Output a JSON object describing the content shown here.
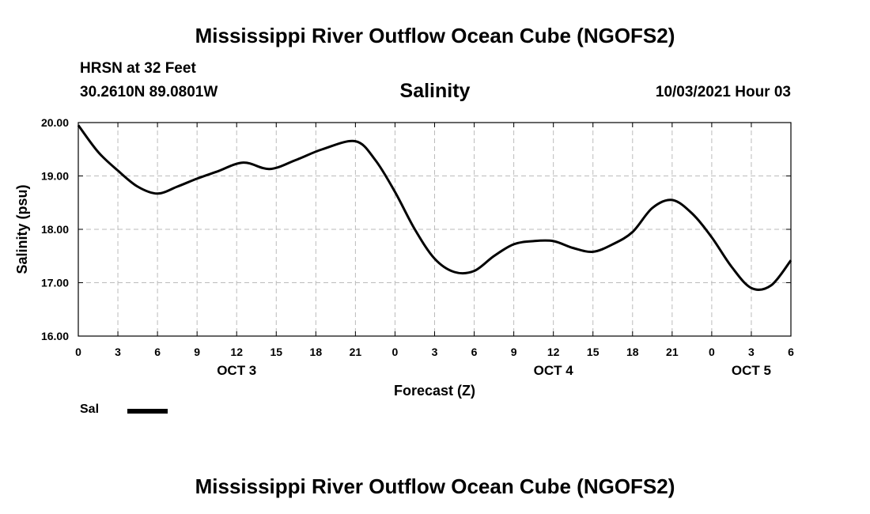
{
  "header": {
    "title": "Mississippi River Outflow Ocean Cube (NGOFS2)",
    "station": "HRSN at 32 Feet",
    "location": "30.2610N  89.0801W",
    "variable": "Salinity",
    "datetime": "10/03/2021 Hour 03"
  },
  "footer": {
    "title": "Mississippi River Outflow Ocean Cube (NGOFS2)"
  },
  "legend": {
    "label": "Sal",
    "color": "#000000"
  },
  "chart_data": {
    "type": "line",
    "title": "Salinity",
    "xlabel": "Forecast (Z)",
    "ylabel": "Salinity (psu)",
    "xlim": [
      0,
      54
    ],
    "ylim": [
      16,
      20
    ],
    "grid": true,
    "legend_position": "bottom-left",
    "yticks": [
      "16.00",
      "17.00",
      "18.00",
      "19.00",
      "20.00"
    ],
    "ytick_values": [
      16,
      17,
      18,
      19,
      20
    ],
    "xtick_labels": [
      "0",
      "3",
      "6",
      "9",
      "12",
      "15",
      "18",
      "21",
      "0",
      "3",
      "6",
      "9",
      "12",
      "15",
      "18",
      "21",
      "0",
      "3",
      "6"
    ],
    "date_labels": [
      {
        "label": "OCT 3",
        "hour": 12
      },
      {
        "label": "OCT 4",
        "hour": 36
      },
      {
        "label": "OCT 5",
        "hour": 51
      }
    ],
    "series": [
      {
        "name": "Sal",
        "color": "#000000",
        "x": [
          0,
          1.5,
          3,
          4.5,
          6,
          7.5,
          9,
          10.5,
          12.5,
          14.5,
          16.5,
          18.5,
          21,
          22.5,
          24,
          25.5,
          27,
          28.5,
          30,
          31.5,
          33,
          34.5,
          36,
          37.5,
          39,
          40.5,
          42,
          43.5,
          45,
          46.5,
          48,
          49.5,
          51,
          52.5,
          54
        ],
        "y": [
          19.95,
          19.45,
          19.1,
          18.8,
          18.67,
          18.8,
          18.95,
          19.08,
          19.25,
          19.13,
          19.3,
          19.5,
          19.65,
          19.3,
          18.7,
          18.0,
          17.45,
          17.2,
          17.22,
          17.5,
          17.72,
          17.78,
          17.78,
          17.65,
          17.58,
          17.72,
          17.95,
          18.4,
          18.55,
          18.3,
          17.85,
          17.3,
          16.9,
          16.95,
          17.42
        ]
      }
    ]
  }
}
